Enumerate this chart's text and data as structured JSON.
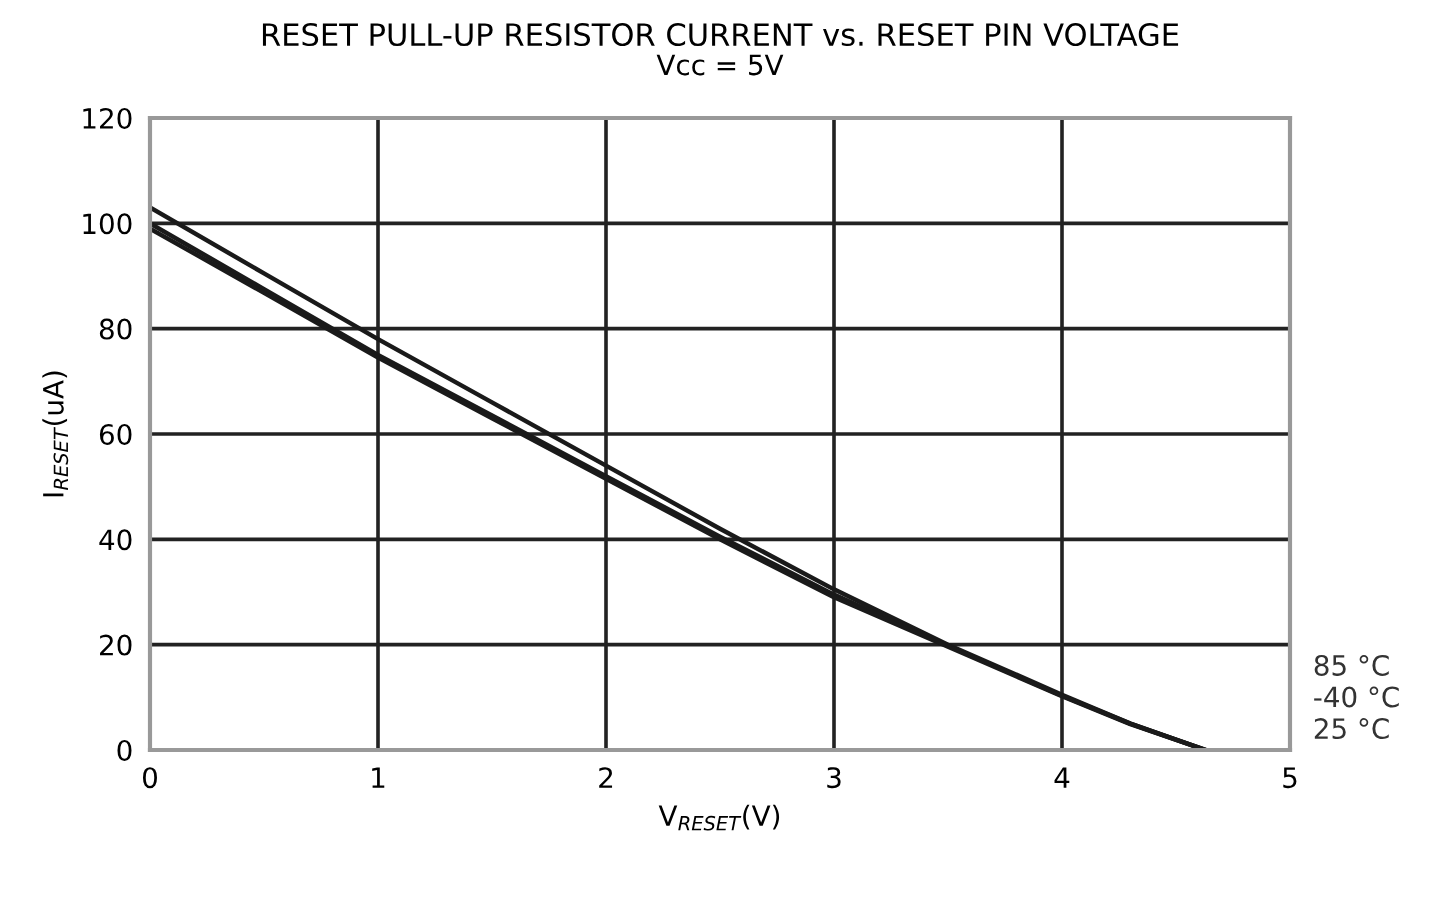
{
  "chart_data": {
    "type": "line",
    "title": "RESET PULL-UP RESISTOR CURRENT vs. RESET PIN VOLTAGE",
    "subtitle": "Vcc = 5V",
    "xlabel": "V$_{RESET}$(V)",
    "ylabel": "I$_{RESET}$(uA)",
    "x": [
      0,
      0.5,
      1,
      1.5,
      2,
      2.5,
      3,
      3.5,
      4,
      4.3,
      4.63
    ],
    "series": [
      {
        "name": "85 °C",
        "color": "#1a1a1a",
        "values": [
          103,
          90.5,
          78,
          66,
          54,
          42,
          30.5,
          20,
          10.5,
          5,
          0
        ]
      },
      {
        "name": "-40 °C",
        "color": "#1a1a1a",
        "values": [
          100,
          87.5,
          75,
          63.5,
          52,
          40.5,
          29.5,
          19.8,
          10.3,
          5,
          0
        ]
      },
      {
        "name": "25 °C",
        "color": "#1a1a1a",
        "values": [
          99,
          86.8,
          74.5,
          63,
          51.5,
          40,
          29,
          19.6,
          10.2,
          4.9,
          0
        ]
      }
    ],
    "xlim": [
      0,
      5
    ],
    "xticks": [
      0,
      1,
      2,
      3,
      4,
      5
    ],
    "ylim": [
      0,
      120
    ],
    "yticks": [
      0,
      20,
      40,
      60,
      80,
      100,
      120
    ],
    "grid": true,
    "marker": "none",
    "line_style": "solid"
  }
}
